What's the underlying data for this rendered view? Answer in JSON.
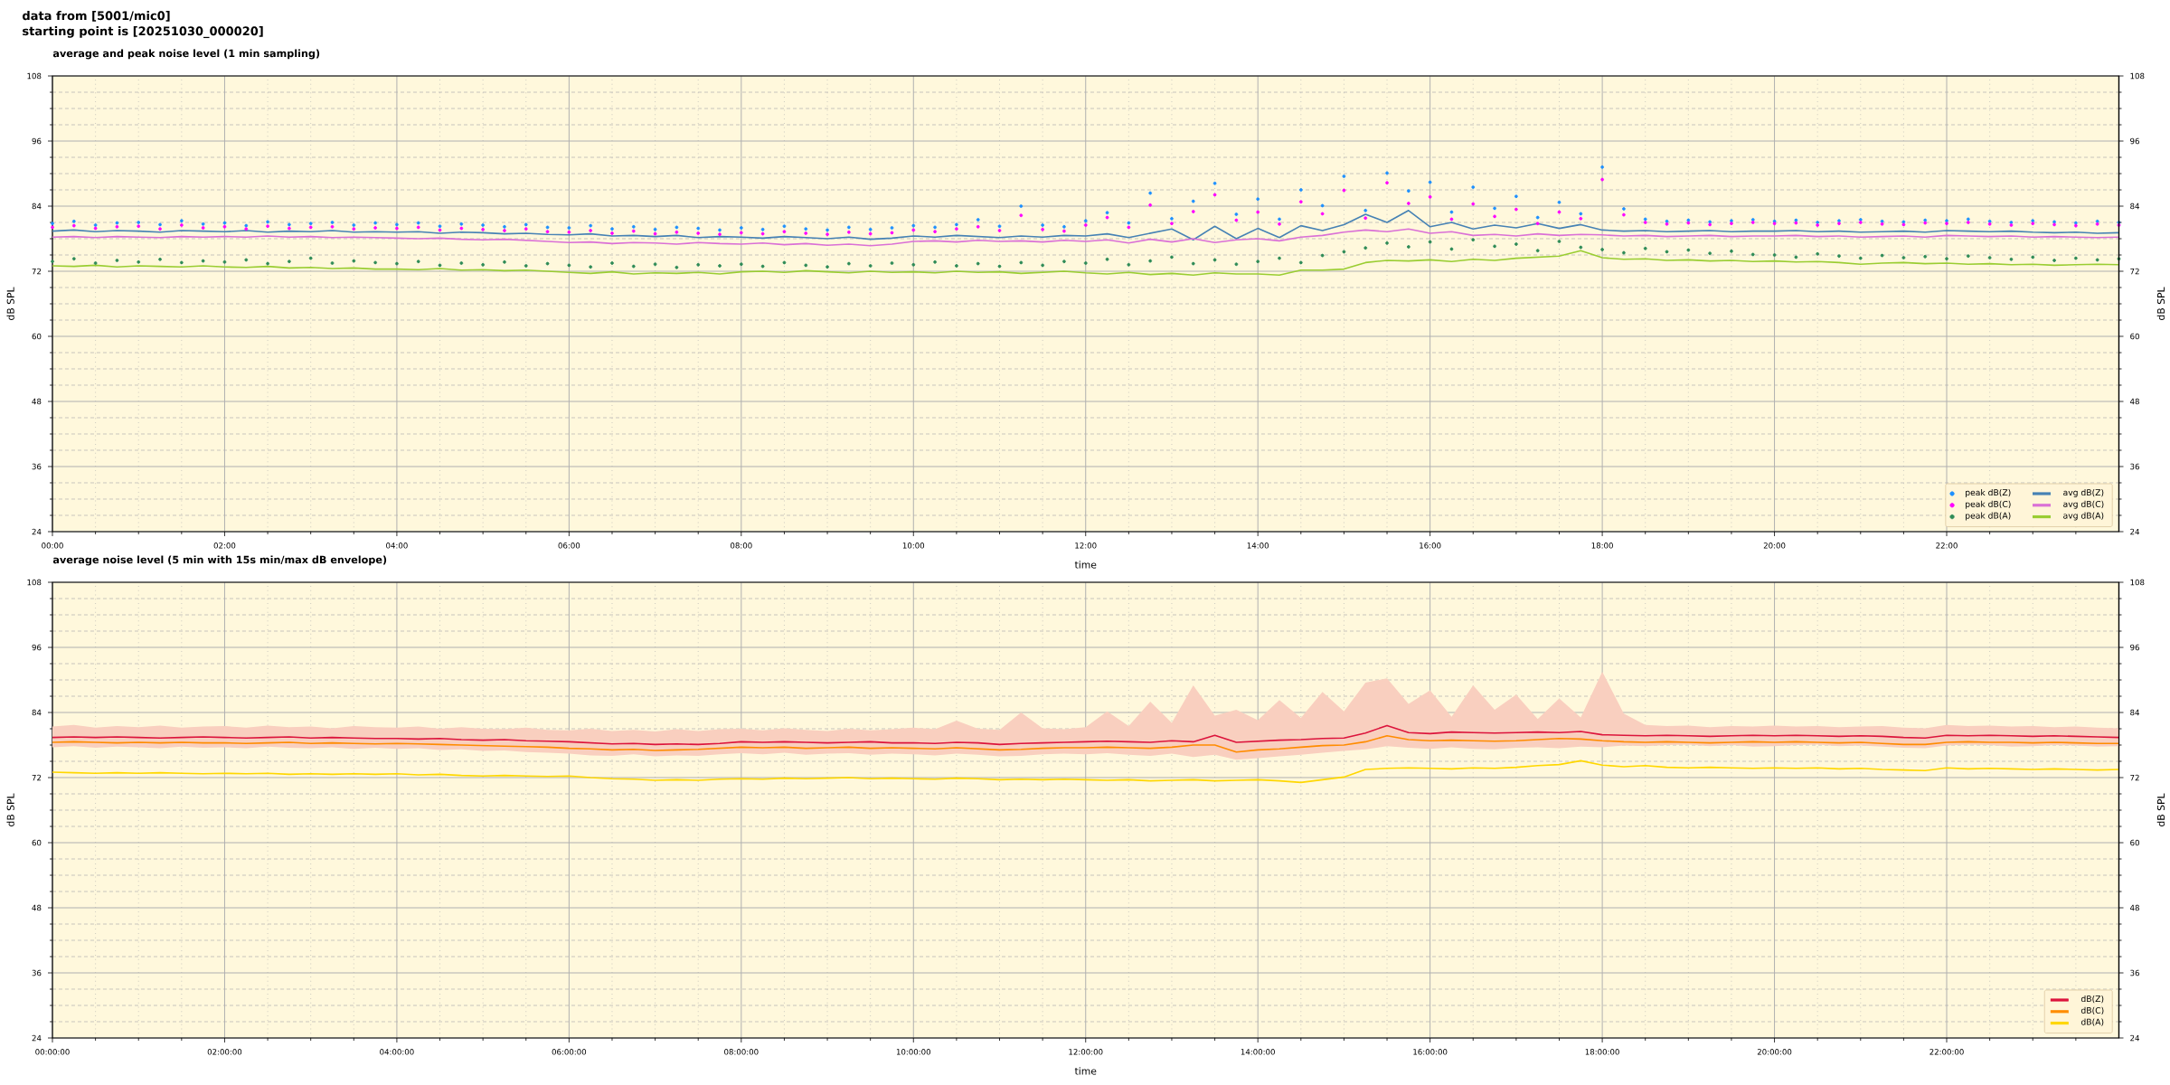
{
  "chart_data": [
    {
      "type": "line",
      "title": "average and peak noise level (1 min sampling)",
      "annotations": [
        "data from [5001/mic0]",
        "starting point is [20251030_000020]"
      ],
      "xlabel": "time",
      "ylabel": "dB SPL",
      "y2label": "dB SPL",
      "x": [
        0,
        0.25,
        0.5,
        0.75,
        1,
        1.25,
        1.5,
        1.75,
        2,
        2.25,
        2.5,
        2.75,
        3,
        3.25,
        3.5,
        3.75,
        4,
        4.25,
        4.5,
        4.75,
        5,
        5.25,
        5.5,
        5.75,
        6,
        6.25,
        6.5,
        6.75,
        7,
        7.25,
        7.5,
        7.75,
        8,
        8.25,
        8.5,
        8.75,
        9,
        9.25,
        9.5,
        9.75,
        10,
        10.25,
        10.5,
        10.75,
        11,
        11.25,
        11.5,
        11.75,
        12,
        12.25,
        12.5,
        12.75,
        13,
        13.25,
        13.5,
        13.75,
        14,
        14.25,
        14.5,
        14.75,
        15,
        15.25,
        15.5,
        15.75,
        16,
        16.25,
        16.5,
        16.75,
        17,
        17.25,
        17.5,
        17.75,
        18,
        18.25,
        18.5,
        18.75,
        19,
        19.25,
        19.5,
        19.75,
        20,
        20.25,
        20.5,
        20.75,
        21,
        21.25,
        21.5,
        21.75,
        22,
        22.25,
        22.5,
        22.75,
        23,
        23.25,
        23.5,
        23.75,
        24
      ],
      "series": [
        {
          "name": "peak dB(Z)",
          "type": "scatter",
          "color": "#1e90ff",
          "values": [
            80.8,
            81.2,
            80.5,
            80.9,
            81.0,
            80.6,
            81.3,
            80.7,
            80.9,
            80.4,
            81.1,
            80.6,
            80.8,
            81.0,
            80.5,
            80.9,
            80.6,
            80.9,
            80.3,
            80.7,
            80.5,
            80.2,
            80.6,
            80.1,
            80.0,
            80.4,
            79.8,
            80.2,
            79.7,
            80.1,
            79.9,
            79.6,
            80.0,
            79.7,
            80.3,
            79.8,
            79.6,
            80.1,
            79.7,
            80.0,
            80.4,
            80.1,
            80.6,
            81.5,
            80.3,
            84.0,
            80.5,
            80.2,
            81.3,
            82.8,
            80.9,
            86.4,
            81.7,
            84.9,
            88.2,
            82.5,
            85.3,
            81.6,
            87.0,
            84.1,
            89.5,
            83.2,
            90.1,
            86.8,
            88.4,
            82.9,
            87.5,
            83.6,
            85.8,
            81.9,
            84.7,
            82.6,
            91.2,
            83.5,
            81.6,
            81.2,
            81.4,
            81.1,
            81.3,
            81.5,
            81.2,
            81.4,
            81.0,
            81.3,
            81.5,
            81.2,
            81.1,
            81.4,
            81.3,
            81.6,
            81.2,
            81.0,
            81.3,
            81.1,
            80.9,
            81.2,
            81.0
          ]
        },
        {
          "name": "peak dB(C)",
          "type": "scatter",
          "color": "#ff00ff",
          "values": [
            80.1,
            80.4,
            79.9,
            80.2,
            80.3,
            79.8,
            80.5,
            80.0,
            80.2,
            79.8,
            80.3,
            79.9,
            80.1,
            80.2,
            79.8,
            80.0,
            79.9,
            80.1,
            79.6,
            79.9,
            79.7,
            79.5,
            79.8,
            79.3,
            79.2,
            79.5,
            79.0,
            79.4,
            78.9,
            79.2,
            79.0,
            78.8,
            79.1,
            78.9,
            79.3,
            79.0,
            78.8,
            79.2,
            78.9,
            79.1,
            79.6,
            79.3,
            79.8,
            80.2,
            79.5,
            82.3,
            79.7,
            79.4,
            80.5,
            81.9,
            80.1,
            84.2,
            80.8,
            83.0,
            86.1,
            81.4,
            82.9,
            80.7,
            84.8,
            82.6,
            86.9,
            81.8,
            88.3,
            84.5,
            85.7,
            81.6,
            84.4,
            82.1,
            83.4,
            80.8,
            82.9,
            81.7,
            88.9,
            82.4,
            81.0,
            80.7,
            80.9,
            80.6,
            80.8,
            81.0,
            80.8,
            80.9,
            80.5,
            80.8,
            81.0,
            80.7,
            80.6,
            80.9,
            80.8,
            81.0,
            80.7,
            80.5,
            80.8,
            80.6,
            80.4,
            80.7,
            80.5
          ]
        },
        {
          "name": "peak dB(A)",
          "type": "scatter",
          "color": "#2e8b57",
          "values": [
            73.8,
            74.3,
            73.5,
            74.0,
            73.7,
            74.2,
            73.6,
            73.9,
            73.7,
            74.1,
            73.4,
            73.8,
            74.4,
            73.5,
            73.9,
            73.6,
            73.4,
            73.8,
            73.1,
            73.5,
            73.2,
            73.7,
            73.0,
            73.4,
            73.1,
            72.8,
            73.5,
            72.9,
            73.3,
            72.7,
            73.2,
            73.0,
            73.3,
            72.9,
            73.6,
            73.1,
            72.8,
            73.4,
            73.0,
            73.5,
            73.2,
            73.7,
            73.0,
            73.4,
            72.9,
            73.6,
            73.1,
            73.8,
            73.5,
            74.2,
            73.2,
            73.9,
            74.6,
            73.4,
            74.1,
            73.3,
            73.8,
            74.4,
            73.6,
            74.9,
            75.6,
            76.3,
            77.2,
            76.5,
            77.4,
            76.1,
            77.8,
            76.6,
            77.0,
            75.8,
            77.5,
            76.4,
            76.0,
            75.4,
            76.2,
            75.6,
            75.9,
            75.3,
            75.7,
            75.1,
            75.0,
            74.6,
            75.2,
            74.8,
            74.4,
            74.9,
            74.5,
            74.7,
            74.3,
            74.8,
            74.5,
            74.2,
            74.6,
            74.0,
            74.4,
            74.1,
            74.3
          ]
        },
        {
          "name": "avg dB(Z)",
          "type": "line",
          "color": "#4682b4",
          "values": [
            79.4,
            79.6,
            79.3,
            79.5,
            79.4,
            79.2,
            79.5,
            79.4,
            79.3,
            79.5,
            79.2,
            79.4,
            79.3,
            79.5,
            79.2,
            79.3,
            79.2,
            79.3,
            79.0,
            79.2,
            79.1,
            78.9,
            79.0,
            78.8,
            78.7,
            78.9,
            78.5,
            78.6,
            78.4,
            78.6,
            78.2,
            78.4,
            78.3,
            78.1,
            78.4,
            78.2,
            78.0,
            78.3,
            77.9,
            78.1,
            78.5,
            78.3,
            78.6,
            78.4,
            78.2,
            78.5,
            78.3,
            78.6,
            78.5,
            78.9,
            78.2,
            79.0,
            79.8,
            77.8,
            80.3,
            78.0,
            79.9,
            78.2,
            80.4,
            79.5,
            80.6,
            82.5,
            81.0,
            83.2,
            80.2,
            81.0,
            79.8,
            80.5,
            80.0,
            80.8,
            79.9,
            80.6,
            79.6,
            79.4,
            79.5,
            79.3,
            79.4,
            79.5,
            79.3,
            79.4,
            79.4,
            79.5,
            79.3,
            79.4,
            79.2,
            79.3,
            79.4,
            79.2,
            79.5,
            79.4,
            79.3,
            79.4,
            79.2,
            79.1,
            79.2,
            79.0,
            79.1
          ]
        },
        {
          "name": "avg dB(C)",
          "type": "line",
          "color": "#da70d6",
          "values": [
            78.3,
            78.4,
            78.2,
            78.4,
            78.3,
            78.2,
            78.4,
            78.3,
            78.4,
            78.3,
            78.5,
            78.3,
            78.4,
            78.2,
            78.3,
            78.2,
            78.1,
            78.0,
            78.1,
            77.9,
            77.8,
            77.9,
            77.7,
            77.5,
            77.3,
            77.4,
            77.1,
            77.3,
            77.2,
            77.0,
            77.3,
            77.1,
            77.0,
            77.2,
            76.9,
            77.1,
            76.8,
            77.0,
            76.7,
            77.0,
            77.5,
            77.6,
            77.4,
            77.7,
            77.5,
            77.6,
            77.4,
            77.7,
            77.5,
            77.8,
            77.2,
            77.9,
            77.4,
            78.0,
            77.3,
            77.8,
            78.0,
            77.6,
            78.3,
            78.6,
            79.2,
            79.6,
            79.3,
            79.8,
            79.0,
            79.3,
            78.6,
            78.8,
            78.5,
            78.9,
            78.6,
            78.8,
            78.7,
            78.5,
            78.6,
            78.4,
            78.5,
            78.6,
            78.4,
            78.5,
            78.5,
            78.6,
            78.4,
            78.5,
            78.3,
            78.4,
            78.5,
            78.3,
            78.6,
            78.5,
            78.4,
            78.5,
            78.3,
            78.4,
            78.3,
            78.2,
            78.3
          ]
        },
        {
          "name": "avg dB(A)",
          "type": "line",
          "color": "#9acd32",
          "values": [
            73.0,
            72.9,
            73.1,
            72.8,
            73.0,
            72.9,
            72.8,
            73.0,
            72.8,
            72.7,
            72.9,
            72.6,
            72.7,
            72.5,
            72.6,
            72.4,
            72.4,
            72.3,
            72.5,
            72.2,
            72.3,
            72.1,
            72.2,
            72.0,
            71.8,
            71.6,
            71.9,
            71.5,
            71.7,
            71.6,
            71.8,
            71.5,
            71.9,
            72.0,
            71.8,
            72.1,
            71.9,
            71.7,
            72.0,
            71.8,
            71.9,
            71.7,
            72.0,
            71.8,
            71.9,
            71.6,
            71.8,
            72.0,
            71.7,
            71.5,
            71.8,
            71.4,
            71.6,
            71.3,
            71.7,
            71.5,
            71.5,
            71.3,
            72.2,
            72.2,
            72.4,
            73.6,
            74.0,
            73.9,
            74.1,
            73.8,
            74.2,
            74.0,
            74.4,
            74.6,
            74.8,
            75.8,
            74.5,
            74.2,
            74.3,
            74.0,
            74.1,
            73.9,
            74.0,
            73.8,
            73.9,
            73.7,
            73.8,
            73.6,
            73.3,
            73.5,
            73.6,
            73.4,
            73.5,
            73.3,
            73.4,
            73.2,
            73.3,
            73.1,
            73.2,
            73.3,
            73.2
          ]
        }
      ],
      "xlim": [
        0,
        24
      ],
      "xticks": [
        {
          "value": 0,
          "label": "00:00"
        },
        {
          "value": 0.5,
          "label": null
        },
        {
          "value": 1,
          "label": null
        },
        {
          "value": 1.5,
          "label": null
        },
        {
          "value": 2,
          "label": "02:00"
        },
        {
          "value": 2.5,
          "label": null
        },
        {
          "value": 3,
          "label": null
        },
        {
          "value": 3.5,
          "label": null
        },
        {
          "value": 4,
          "label": "04:00"
        },
        {
          "value": 4.5,
          "label": null
        },
        {
          "value": 5,
          "label": null
        },
        {
          "value": 5.5,
          "label": null
        },
        {
          "value": 6,
          "label": "06:00"
        },
        {
          "value": 6.5,
          "label": null
        },
        {
          "value": 7,
          "label": null
        },
        {
          "value": 7.5,
          "label": null
        },
        {
          "value": 8,
          "label": "08:00"
        },
        {
          "value": 8.5,
          "label": null
        },
        {
          "value": 9,
          "label": null
        },
        {
          "value": 9.5,
          "label": null
        },
        {
          "value": 10,
          "label": "10:00"
        },
        {
          "value": 10.5,
          "label": null
        },
        {
          "value": 11,
          "label": null
        },
        {
          "value": 11.5,
          "label": null
        },
        {
          "value": 12,
          "label": "12:00"
        },
        {
          "value": 12.5,
          "label": null
        },
        {
          "value": 13,
          "label": null
        },
        {
          "value": 13.5,
          "label": null
        },
        {
          "value": 14,
          "label": "14:00"
        },
        {
          "value": 14.5,
          "label": null
        },
        {
          "value": 15,
          "label": null
        },
        {
          "value": 15.5,
          "label": null
        },
        {
          "value": 16,
          "label": "16:00"
        },
        {
          "value": 16.5,
          "label": null
        },
        {
          "value": 17,
          "label": null
        },
        {
          "value": 17.5,
          "label": null
        },
        {
          "value": 18,
          "label": "18:00"
        },
        {
          "value": 18.5,
          "label": null
        },
        {
          "value": 19,
          "label": null
        },
        {
          "value": 19.5,
          "label": null
        },
        {
          "value": 20,
          "label": "20:00"
        },
        {
          "value": 20.5,
          "label": null
        },
        {
          "value": 21,
          "label": null
        },
        {
          "value": 21.5,
          "label": null
        },
        {
          "value": 22,
          "label": "22:00"
        },
        {
          "value": 22.5,
          "label": null
        },
        {
          "value": 23,
          "label": null
        },
        {
          "value": 23.5,
          "label": null
        }
      ],
      "ylim": [
        24,
        108
      ],
      "yticks": [
        24,
        {
          "value": 27,
          "label": null
        },
        {
          "value": 30,
          "label": null
        },
        {
          "value": 33,
          "label": null
        },
        36,
        {
          "value": 39,
          "label": null
        },
        {
          "value": 42,
          "label": null
        },
        {
          "value": 45,
          "label": null
        },
        48,
        {
          "value": 51,
          "label": null
        },
        {
          "value": 54,
          "label": null
        },
        {
          "value": 57,
          "label": null
        },
        60,
        {
          "value": 63,
          "label": null
        },
        {
          "value": 66,
          "label": null
        },
        {
          "value": 69,
          "label": null
        },
        72,
        {
          "value": 75,
          "label": null
        },
        {
          "value": 78,
          "label": null
        },
        {
          "value": 81,
          "label": null
        },
        84,
        {
          "value": 87,
          "label": null
        },
        {
          "value": 90,
          "label": null
        },
        {
          "value": 93,
          "label": null
        },
        96,
        {
          "value": 99,
          "label": null
        },
        {
          "value": 102,
          "label": null
        },
        {
          "value": 105,
          "label": null
        },
        108
      ],
      "y2lim": [
        24,
        108
      ],
      "y2ticks": [
        24,
        {
          "value": 27,
          "label": null
        },
        {
          "value": 30,
          "label": null
        },
        {
          "value": 33,
          "label": null
        },
        36,
        {
          "value": 39,
          "label": null
        },
        {
          "value": 42,
          "label": null
        },
        {
          "value": 45,
          "label": null
        },
        48,
        {
          "value": 51,
          "label": null
        },
        {
          "value": 54,
          "label": null
        },
        {
          "value": 57,
          "label": null
        },
        60,
        {
          "value": 63,
          "label": null
        },
        {
          "value": 66,
          "label": null
        },
        {
          "value": 69,
          "label": null
        },
        72,
        {
          "value": 75,
          "label": null
        },
        {
          "value": 78,
          "label": null
        },
        {
          "value": 81,
          "label": null
        },
        84,
        {
          "value": 87,
          "label": null
        },
        {
          "value": 90,
          "label": null
        },
        {
          "value": 93,
          "label": null
        },
        96,
        {
          "value": 99,
          "label": null
        },
        {
          "value": 102,
          "label": null
        },
        {
          "value": 105,
          "label": null
        },
        108
      ],
      "grid": true,
      "legend": "bottom right"
    },
    {
      "type": "line",
      "title": "average noise level (5 min with 15s min/max dB envelope)",
      "xlabel": "time",
      "ylabel": "dB SPL",
      "y2label": "dB SPL",
      "x": [
        0,
        0.25,
        0.5,
        0.75,
        1,
        1.25,
        1.5,
        1.75,
        2,
        2.25,
        2.5,
        2.75,
        3,
        3.25,
        3.5,
        3.75,
        4,
        4.25,
        4.5,
        4.75,
        5,
        5.25,
        5.5,
        5.75,
        6,
        6.25,
        6.5,
        6.75,
        7,
        7.25,
        7.5,
        7.75,
        8,
        8.25,
        8.5,
        8.75,
        9,
        9.25,
        9.5,
        9.75,
        10,
        10.25,
        10.5,
        10.75,
        11,
        11.25,
        11.5,
        11.75,
        12,
        12.25,
        12.5,
        12.75,
        13,
        13.25,
        13.5,
        13.75,
        14,
        14.25,
        14.5,
        14.75,
        15,
        15.25,
        15.5,
        15.75,
        16,
        16.25,
        16.5,
        16.75,
        17,
        17.25,
        17.5,
        17.75,
        18,
        18.25,
        18.5,
        18.75,
        19,
        19.25,
        19.5,
        19.75,
        20,
        20.25,
        20.5,
        20.75,
        21,
        21.25,
        21.5,
        21.75,
        22,
        22.25,
        22.5,
        22.75,
        23,
        23.25,
        23.5,
        23.75,
        24
      ],
      "series": [
        {
          "name": "dB(Z)",
          "color": "#dc143c",
          "values": [
            79.4,
            79.5,
            79.4,
            79.5,
            79.4,
            79.3,
            79.4,
            79.5,
            79.4,
            79.3,
            79.4,
            79.5,
            79.3,
            79.4,
            79.3,
            79.2,
            79.2,
            79.1,
            79.2,
            79.0,
            78.9,
            79.0,
            78.8,
            78.7,
            78.6,
            78.4,
            78.2,
            78.3,
            78.1,
            78.2,
            78.1,
            78.3,
            78.6,
            78.5,
            78.6,
            78.5,
            78.4,
            78.5,
            78.6,
            78.4,
            78.4,
            78.3,
            78.5,
            78.4,
            78.1,
            78.3,
            78.4,
            78.5,
            78.6,
            78.7,
            78.6,
            78.5,
            78.8,
            78.6,
            79.8,
            78.5,
            78.7,
            78.9,
            79.0,
            79.2,
            79.3,
            80.2,
            81.6,
            80.3,
            80.1,
            80.4,
            80.3,
            80.2,
            80.3,
            80.4,
            80.3,
            80.5,
            79.9,
            79.8,
            79.7,
            79.8,
            79.7,
            79.6,
            79.7,
            79.8,
            79.7,
            79.8,
            79.7,
            79.6,
            79.7,
            79.6,
            79.4,
            79.3,
            79.8,
            79.7,
            79.8,
            79.7,
            79.6,
            79.7,
            79.6,
            79.5,
            79.4
          ],
          "upper": [
            81.4,
            81.7,
            81.2,
            81.5,
            81.3,
            81.6,
            81.2,
            81.4,
            81.5,
            81.2,
            81.6,
            81.3,
            81.4,
            81.1,
            81.5,
            81.3,
            81.2,
            81.4,
            81.0,
            81.3,
            81.0,
            80.9,
            81.2,
            80.8,
            80.7,
            81.0,
            80.6,
            80.8,
            80.5,
            80.9,
            80.6,
            80.9,
            81.0,
            80.7,
            81.1,
            80.8,
            80.6,
            81.0,
            80.7,
            80.9,
            81.2,
            80.9,
            82.5,
            81.0,
            80.8,
            84.0,
            81.1,
            80.9,
            81.3,
            84.2,
            81.5,
            86.0,
            82.1,
            89.0,
            83.4,
            84.5,
            82.6,
            86.3,
            83.0,
            87.8,
            84.2,
            89.5,
            90.3,
            85.6,
            88.1,
            83.2,
            89.0,
            84.5,
            87.3,
            82.8,
            86.6,
            83.1,
            91.5,
            83.8,
            81.7,
            81.5,
            81.6,
            81.3,
            81.5,
            81.4,
            81.6,
            81.4,
            81.5,
            81.3,
            81.4,
            81.5,
            81.2,
            81.1,
            81.7,
            81.5,
            81.6,
            81.4,
            81.5,
            81.3,
            81.4,
            81.2,
            81.1
          ],
          "lower": [
            77.6,
            77.8,
            77.5,
            77.7,
            77.6,
            77.4,
            77.7,
            77.5,
            77.6,
            77.4,
            77.7,
            77.5,
            77.4,
            77.6,
            77.3,
            77.5,
            77.3,
            77.4,
            77.1,
            77.2,
            76.9,
            77.0,
            76.7,
            76.6,
            76.4,
            76.1,
            76.0,
            76.3,
            75.9,
            76.1,
            76.0,
            76.3,
            76.5,
            76.3,
            76.6,
            76.2,
            76.4,
            76.5,
            76.2,
            76.4,
            76.3,
            76.1,
            76.4,
            76.2,
            75.9,
            76.0,
            76.3,
            76.4,
            76.3,
            76.5,
            76.2,
            76.0,
            76.4,
            75.8,
            76.2,
            75.3,
            75.6,
            75.9,
            76.2,
            76.6,
            76.9,
            77.2,
            77.8,
            77.5,
            77.3,
            77.6,
            77.3,
            77.2,
            77.5,
            77.6,
            77.4,
            77.7,
            77.6,
            77.9,
            77.8,
            78.0,
            78.1,
            77.8,
            78.0,
            77.7,
            77.8,
            78.0,
            78.1,
            77.8,
            77.9,
            77.7,
            77.5,
            77.4,
            77.9,
            78.1,
            78.0,
            77.7,
            77.8,
            78.0,
            77.9,
            77.7,
            77.8
          ]
        },
        {
          "name": "dB(C)",
          "color": "#ff8c00",
          "values": [
            78.5,
            78.6,
            78.5,
            78.4,
            78.5,
            78.4,
            78.5,
            78.4,
            78.4,
            78.3,
            78.4,
            78.5,
            78.3,
            78.4,
            78.3,
            78.2,
            78.3,
            78.2,
            78.1,
            78.0,
            77.9,
            77.8,
            77.7,
            77.6,
            77.4,
            77.3,
            77.1,
            77.2,
            77.0,
            77.1,
            77.2,
            77.4,
            77.6,
            77.5,
            77.6,
            77.4,
            77.5,
            77.6,
            77.4,
            77.5,
            77.4,
            77.3,
            77.5,
            77.3,
            77.1,
            77.2,
            77.4,
            77.5,
            77.5,
            77.6,
            77.5,
            77.4,
            77.6,
            78.0,
            78.0,
            76.7,
            77.1,
            77.3,
            77.6,
            77.9,
            78.0,
            78.6,
            79.7,
            79.0,
            78.8,
            78.9,
            78.8,
            78.7,
            78.8,
            79.0,
            79.2,
            79.1,
            78.8,
            78.6,
            78.5,
            78.6,
            78.5,
            78.4,
            78.5,
            78.6,
            78.5,
            78.6,
            78.5,
            78.4,
            78.5,
            78.3,
            78.1,
            78.1,
            78.5,
            78.6,
            78.5,
            78.5,
            78.4,
            78.5,
            78.4,
            78.3,
            78.3
          ]
        },
        {
          "name": "dB(A)",
          "color": "#ffd700",
          "values": [
            73.0,
            72.9,
            72.8,
            72.9,
            72.8,
            72.9,
            72.8,
            72.7,
            72.8,
            72.7,
            72.8,
            72.6,
            72.7,
            72.6,
            72.7,
            72.6,
            72.7,
            72.5,
            72.6,
            72.4,
            72.3,
            72.4,
            72.3,
            72.2,
            72.3,
            72.0,
            71.8,
            71.7,
            71.5,
            71.6,
            71.5,
            71.7,
            71.8,
            71.7,
            71.9,
            71.8,
            71.9,
            72.0,
            71.8,
            71.9,
            71.8,
            71.7,
            71.9,
            71.8,
            71.6,
            71.7,
            71.6,
            71.7,
            71.6,
            71.5,
            71.6,
            71.4,
            71.5,
            71.6,
            71.4,
            71.5,
            71.6,
            71.4,
            71.1,
            71.6,
            72.1,
            73.5,
            73.7,
            73.8,
            73.7,
            73.6,
            73.8,
            73.7,
            73.9,
            74.2,
            74.4,
            75.1,
            74.3,
            74.0,
            74.2,
            73.9,
            73.8,
            73.9,
            73.8,
            73.7,
            73.8,
            73.7,
            73.8,
            73.6,
            73.7,
            73.5,
            73.4,
            73.3,
            73.8,
            73.6,
            73.7,
            73.6,
            73.5,
            73.6,
            73.5,
            73.4,
            73.5
          ]
        }
      ],
      "xlim": [
        0,
        24
      ],
      "xticks": [
        {
          "value": 0,
          "label": "00:00:00"
        },
        {
          "value": 0.5,
          "label": null
        },
        {
          "value": 1,
          "label": null
        },
        {
          "value": 1.5,
          "label": null
        },
        {
          "value": 2,
          "label": "02:00:00"
        },
        {
          "value": 2.5,
          "label": null
        },
        {
          "value": 3,
          "label": null
        },
        {
          "value": 3.5,
          "label": null
        },
        {
          "value": 4,
          "label": "04:00:00"
        },
        {
          "value": 4.5,
          "label": null
        },
        {
          "value": 5,
          "label": null
        },
        {
          "value": 5.5,
          "label": null
        },
        {
          "value": 6,
          "label": "06:00:00"
        },
        {
          "value": 6.5,
          "label": null
        },
        {
          "value": 7,
          "label": null
        },
        {
          "value": 7.5,
          "label": null
        },
        {
          "value": 8,
          "label": "08:00:00"
        },
        {
          "value": 8.5,
          "label": null
        },
        {
          "value": 9,
          "label": null
        },
        {
          "value": 9.5,
          "label": null
        },
        {
          "value": 10,
          "label": "10:00:00"
        },
        {
          "value": 10.5,
          "label": null
        },
        {
          "value": 11,
          "label": null
        },
        {
          "value": 11.5,
          "label": null
        },
        {
          "value": 12,
          "label": "12:00:00"
        },
        {
          "value": 12.5,
          "label": null
        },
        {
          "value": 13,
          "label": null
        },
        {
          "value": 13.5,
          "label": null
        },
        {
          "value": 14,
          "label": "14:00:00"
        },
        {
          "value": 14.5,
          "label": null
        },
        {
          "value": 15,
          "label": null
        },
        {
          "value": 15.5,
          "label": null
        },
        {
          "value": 16,
          "label": "16:00:00"
        },
        {
          "value": 16.5,
          "label": null
        },
        {
          "value": 17,
          "label": null
        },
        {
          "value": 17.5,
          "label": null
        },
        {
          "value": 18,
          "label": "18:00:00"
        },
        {
          "value": 18.5,
          "label": null
        },
        {
          "value": 19,
          "label": null
        },
        {
          "value": 19.5,
          "label": null
        },
        {
          "value": 20,
          "label": "20:00:00"
        },
        {
          "value": 20.5,
          "label": null
        },
        {
          "value": 21,
          "label": null
        },
        {
          "value": 21.5,
          "label": null
        },
        {
          "value": 22,
          "label": "22:00:00"
        },
        {
          "value": 22.5,
          "label": null
        },
        {
          "value": 23,
          "label": null
        },
        {
          "value": 23.5,
          "label": null
        }
      ],
      "ylim": [
        24,
        108
      ],
      "yticks": [
        24,
        {
          "value": 27,
          "label": null
        },
        {
          "value": 30,
          "label": null
        },
        {
          "value": 33,
          "label": null
        },
        36,
        {
          "value": 39,
          "label": null
        },
        {
          "value": 42,
          "label": null
        },
        {
          "value": 45,
          "label": null
        },
        48,
        {
          "value": 51,
          "label": null
        },
        {
          "value": 54,
          "label": null
        },
        {
          "value": 57,
          "label": null
        },
        60,
        {
          "value": 63,
          "label": null
        },
        {
          "value": 66,
          "label": null
        },
        {
          "value": 69,
          "label": null
        },
        72,
        {
          "value": 75,
          "label": null
        },
        {
          "value": 78,
          "label": null
        },
        {
          "value": 81,
          "label": null
        },
        84,
        {
          "value": 87,
          "label": null
        },
        {
          "value": 90,
          "label": null
        },
        {
          "value": 93,
          "label": null
        },
        96,
        {
          "value": 99,
          "label": null
        },
        {
          "value": 102,
          "label": null
        },
        {
          "value": 105,
          "label": null
        },
        108
      ],
      "y2lim": [
        24,
        108
      ],
      "y2ticks": [
        24,
        {
          "value": 27,
          "label": null
        },
        {
          "value": 30,
          "label": null
        },
        {
          "value": 33,
          "label": null
        },
        36,
        {
          "value": 39,
          "label": null
        },
        {
          "value": 42,
          "label": null
        },
        {
          "value": 45,
          "label": null
        },
        48,
        {
          "value": 51,
          "label": null
        },
        {
          "value": 54,
          "label": null
        },
        {
          "value": 57,
          "label": null
        },
        60,
        {
          "value": 63,
          "label": null
        },
        {
          "value": 66,
          "label": null
        },
        {
          "value": 69,
          "label": null
        },
        72,
        {
          "value": 75,
          "label": null
        },
        {
          "value": 78,
          "label": null
        },
        {
          "value": 81,
          "label": null
        },
        84,
        {
          "value": 87,
          "label": null
        },
        {
          "value": 90,
          "label": null
        },
        {
          "value": 93,
          "label": null
        },
        96,
        {
          "value": 99,
          "label": null
        },
        {
          "value": 102,
          "label": null
        },
        {
          "value": 105,
          "label": null
        },
        108
      ],
      "grid": true,
      "legend": "bottom right"
    }
  ]
}
